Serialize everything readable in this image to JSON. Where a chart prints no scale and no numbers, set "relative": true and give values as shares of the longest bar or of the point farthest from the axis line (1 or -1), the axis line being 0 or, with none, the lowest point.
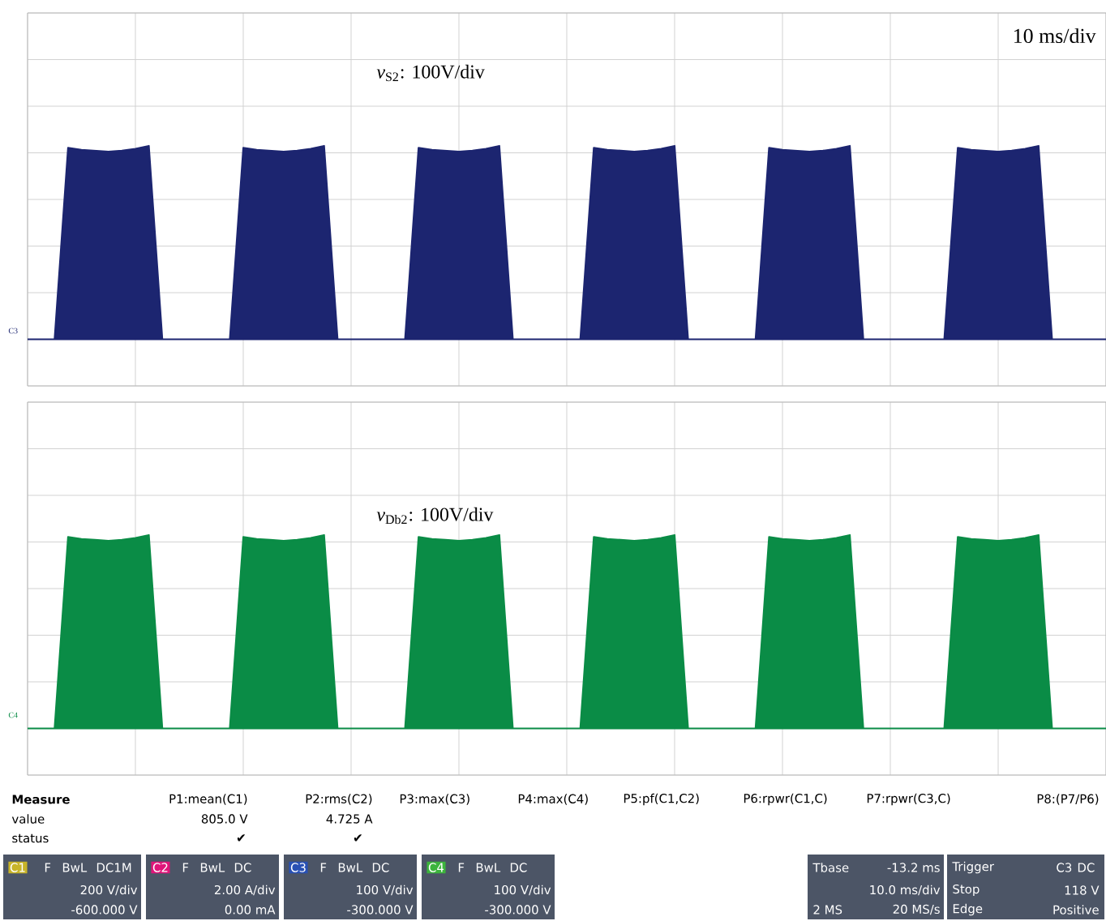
{
  "chart_data": [
    {
      "type": "area",
      "relative": true,
      "grid": true,
      "tick_labels": false,
      "categories": [
        null,
        null,
        null,
        null,
        null,
        null,
        null,
        null,
        null,
        null,
        null,
        null,
        null,
        null,
        null,
        null,
        null,
        null,
        null,
        null,
        null,
        null,
        null,
        null,
        null,
        null,
        null,
        null,
        null,
        null,
        null,
        null,
        null,
        null,
        null,
        null,
        null,
        null,
        null,
        null,
        null,
        null,
        null,
        null,
        null,
        null,
        null,
        null,
        null,
        null,
        null,
        null,
        null,
        null,
        null,
        null,
        null,
        null,
        null,
        null,
        null,
        null,
        null,
        null,
        null,
        null,
        null,
        null,
        null,
        null,
        null,
        null,
        null,
        null,
        null,
        null,
        null,
        null,
        null,
        null,
        null
      ],
      "series": [
        {
          "color": "#1c2570",
          "values": [
            0,
            0,
            0,
            0.99,
            0.98,
            0.975,
            0.97,
            0.975,
            0.985,
            1,
            0,
            0,
            0,
            0,
            0,
            0,
            0.99,
            0.98,
            0.975,
            0.97,
            0.975,
            0.985,
            1,
            0,
            0,
            0,
            0,
            0,
            0,
            0.99,
            0.98,
            0.975,
            0.97,
            0.975,
            0.985,
            1,
            0,
            0,
            0,
            0,
            0,
            0,
            0.99,
            0.98,
            0.975,
            0.97,
            0.975,
            0.985,
            1,
            0,
            0,
            0,
            0,
            0,
            0,
            0.99,
            0.98,
            0.975,
            0.97,
            0.975,
            0.985,
            1,
            0,
            0,
            0,
            0,
            0,
            0,
            0,
            0.99,
            0.98,
            0.975,
            0.97,
            0.975,
            0.985,
            1,
            0,
            0,
            0,
            0,
            0
          ]
        }
      ],
      "annotations": [
        "10 ms/div",
        "*v*$_{S2}$: 100V/div",
        "C3"
      ]
    },
    {
      "type": "area",
      "relative": true,
      "grid": true,
      "tick_labels": false,
      "categories": [
        null,
        null,
        null,
        null,
        null,
        null,
        null,
        null,
        null,
        null,
        null,
        null,
        null,
        null,
        null,
        null,
        null,
        null,
        null,
        null,
        null,
        null,
        null,
        null,
        null,
        null,
        null,
        null,
        null,
        null,
        null,
        null,
        null,
        null,
        null,
        null,
        null,
        null,
        null,
        null,
        null,
        null,
        null,
        null,
        null,
        null,
        null,
        null,
        null,
        null,
        null,
        null,
        null,
        null,
        null,
        null,
        null,
        null,
        null,
        null,
        null,
        null,
        null,
        null,
        null,
        null,
        null,
        null,
        null,
        null,
        null,
        null,
        null,
        null,
        null,
        null,
        null,
        null,
        null,
        null,
        null
      ],
      "series": [
        {
          "color": "#0a8c46",
          "values": [
            0,
            0,
            0,
            0.99,
            0.98,
            0.975,
            0.97,
            0.975,
            0.985,
            1,
            0,
            0,
            0,
            0,
            0,
            0,
            0.99,
            0.98,
            0.975,
            0.97,
            0.975,
            0.985,
            1,
            0,
            0,
            0,
            0,
            0,
            0,
            0.99,
            0.98,
            0.975,
            0.97,
            0.975,
            0.985,
            1,
            0,
            0,
            0,
            0,
            0,
            0,
            0.99,
            0.98,
            0.975,
            0.97,
            0.975,
            0.985,
            1,
            0,
            0,
            0,
            0,
            0,
            0,
            0.99,
            0.98,
            0.975,
            0.97,
            0.975,
            0.985,
            1,
            0,
            0,
            0,
            0,
            0,
            0,
            0,
            0.99,
            0.98,
            0.975,
            0.97,
            0.975,
            0.985,
            1,
            0,
            0,
            0,
            0,
            0
          ]
        }
      ],
      "annotations": [
        "*v*$_{Db2}$: 100V/div",
        "C4"
      ]
    },
    {
      "type": "other",
      "annotations": [
        "Measure",
        "value",
        "status",
        "P1:mean(C1)",
        "805.0 V",
        "✔",
        "P2:rms(C2)",
        "4.725 A",
        "✔",
        "P3:max(C3)",
        "P4:max(C4)",
        "P5:pf(C1,C2)",
        "P6:rpwr(C1,C)",
        "P7:rpwr(C3,C)",
        "P8:(P7/P6)",
        "C1",
        "F",
        "BwL",
        "DC1M",
        "200 V/div",
        "-600.000 V",
        "C2",
        "F",
        "BwL",
        "DC",
        "2.00 A/div",
        "0.00 mA",
        "C3",
        "F",
        "BwL",
        "DC",
        "100 V/div",
        "-300.000 V",
        "C4",
        "F",
        "BwL",
        "DC",
        "100 V/div",
        "-300.000 V",
        "Tbase",
        "-13.2 ms",
        "10.0 ms/div",
        "2 MS",
        "20 MS/s",
        "Trigger",
        "C3",
        "DC",
        "Stop",
        "118 V",
        "Edge",
        "Positive"
      ]
    }
  ]
}
